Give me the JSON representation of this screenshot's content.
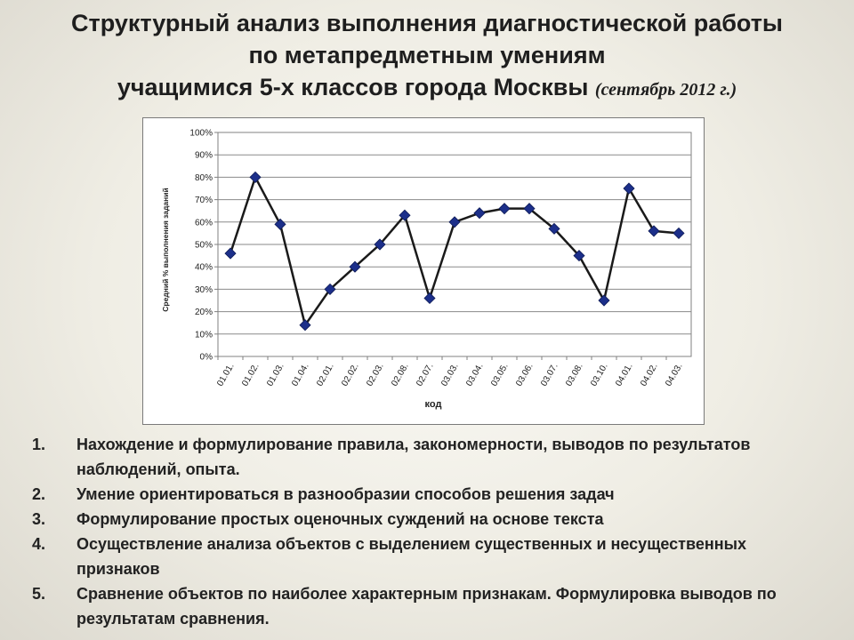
{
  "title": {
    "line1": "Структурный анализ  выполнения диагностической работы",
    "line2": "по метапредметным умениям",
    "line3": "учащимися 5-х классов города Москвы",
    "date": "(сентябрь 2012 г.)"
  },
  "chart_data": {
    "type": "line",
    "ylabel": "Средний % выполнения заданий",
    "xlabel": "код",
    "ylim": [
      0,
      100
    ],
    "y_ticks": [
      "0%",
      "10%",
      "20%",
      "30%",
      "40%",
      "50%",
      "60%",
      "70%",
      "80%",
      "90%",
      "100%"
    ],
    "grid": true,
    "categories": [
      "01.01.",
      "01.02.",
      "01.03.",
      "01.04.",
      "02.01.",
      "02.02.",
      "02.03.",
      "02.08.",
      "02.07.",
      "03.03.",
      "03.04.",
      "03.05.",
      "03.06.",
      "03.07.",
      "03.08.",
      "03.10.",
      "04.01.",
      "04.02.",
      "04.03."
    ],
    "series": [
      {
        "values": [
          46,
          80,
          59,
          14,
          30,
          40,
          50,
          63,
          26,
          60,
          64,
          66,
          66,
          57,
          45,
          25,
          75,
          56,
          55
        ]
      }
    ],
    "colors": {
      "line": "#1a1a1a",
      "marker": "#1c2f8a",
      "grid": "#8a8a8a"
    }
  },
  "list": [
    {
      "num": "1.",
      "text": "Нахождение и формулирование правила, закономерности, выводов по результатов наблюдений, опыта."
    },
    {
      "num": "2.",
      "text": "Умение ориентироваться в разнообразии способов решения задач"
    },
    {
      "num": "3.",
      "text": "Формулирование простых оценочных суждений на основе текста"
    },
    {
      "num": "4.",
      "text": "Осуществление анализа  объектов с выделением существенных и несущественных признаков"
    },
    {
      "num": "5.",
      "text": "Сравнение объектов по наиболее характерным признакам. Формулировка выводов  по результатам сравнения."
    }
  ]
}
